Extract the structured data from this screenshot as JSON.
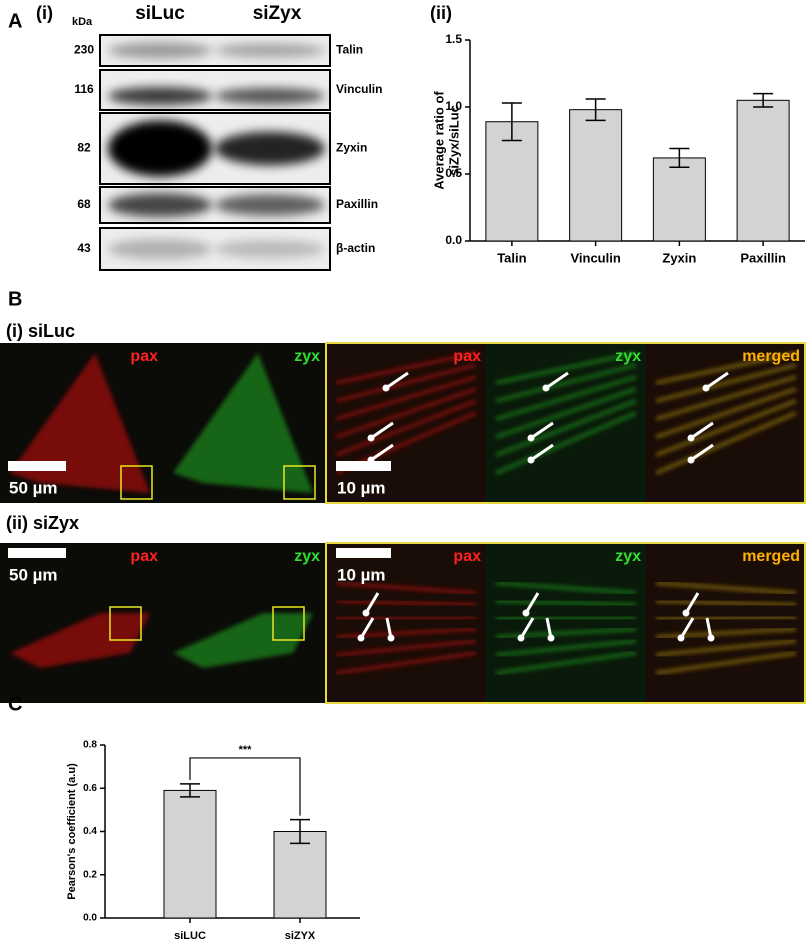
{
  "panel_a": {
    "label": "A",
    "sub": "(i)",
    "kda": "kDa",
    "columns": [
      "siLuc",
      "siZyx"
    ],
    "bands": [
      {
        "kda": "230",
        "name": "Talin"
      },
      {
        "kda": "116",
        "name": "Vinculin"
      },
      {
        "kda": "82",
        "name": "Zyxin"
      },
      {
        "kda": "68",
        "name": "Paxillin"
      },
      {
        "kda": "43",
        "name": "β-actin"
      }
    ]
  },
  "panel_b": {
    "label": "B",
    "rows": [
      {
        "title": "(i)  siLuc",
        "channels": [
          "pax",
          "zyx",
          "pax",
          "zyx",
          "merged"
        ],
        "scales": [
          "50 µm",
          "10 µm"
        ]
      },
      {
        "title": "(ii) siZyx",
        "channels": [
          "pax",
          "zyx",
          "pax",
          "zyx",
          "merged"
        ],
        "scales": [
          "50 µm",
          "10 µm"
        ]
      }
    ]
  },
  "chart_data": [
    {
      "type": "bar",
      "panel": "(ii)",
      "ylabel": [
        "Average ratio of",
        "siZyx/siLuc"
      ],
      "categories": [
        "Talin",
        "Vinculin",
        "Zyxin",
        "Paxillin"
      ],
      "values": [
        0.89,
        0.98,
        0.62,
        1.05
      ],
      "errors": [
        0.14,
        0.08,
        0.07,
        0.05
      ],
      "color": "#d3d3d3",
      "ylim": [
        0,
        1.5
      ],
      "yticks": [
        {
          "value": 0,
          "label": "0.0"
        },
        {
          "value": 0.5,
          "label": "0.5"
        },
        {
          "value": 1,
          "label": "1.0"
        },
        {
          "value": 1.5,
          "label": "1.5"
        }
      ]
    },
    {
      "type": "bar",
      "panel": "C",
      "ylabel": [
        "Pearson's coefficient (a.u)"
      ],
      "categories": [
        "siLUC",
        "siZYX"
      ],
      "values": [
        0.59,
        0.4
      ],
      "errors": [
        0.03,
        0.055
      ],
      "color": "#d3d3d3",
      "annotation": "***",
      "ylim": [
        0,
        0.8
      ],
      "yticks": [
        {
          "value": 0,
          "label": "0.0"
        },
        {
          "value": 0.2,
          "label": "0.2"
        },
        {
          "value": 0.4,
          "label": "0.4"
        },
        {
          "value": 0.6,
          "label": "0.6"
        },
        {
          "value": 0.8,
          "label": "0.8"
        }
      ]
    }
  ]
}
